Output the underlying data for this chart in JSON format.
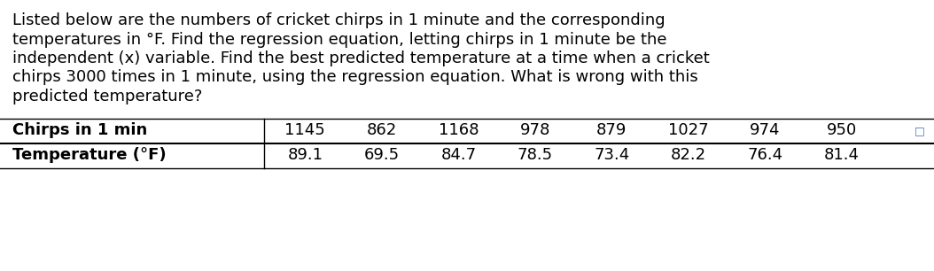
{
  "paragraph_lines": [
    "Listed below are the numbers of cricket chirps in 1 minute and the corresponding",
    "temperatures in °F. Find the regression equation, letting chirps in 1 minute be the",
    "independent (x) variable. Find the best predicted temperature at a time when a cricket",
    "chirps 3000 times in 1 minute, using the regression equation. What is wrong with this",
    "predicted temperature?"
  ],
  "row1_label": "Chirps in 1 min",
  "row2_label": "Temperature (°F)",
  "row1_values": [
    "1145",
    "862",
    "1168",
    "978",
    "879",
    "1027",
    "974",
    "950"
  ],
  "row2_values": [
    "89.1",
    "69.5",
    "84.7",
    "78.5",
    "73.4",
    "82.2",
    "76.4",
    "81.4"
  ],
  "bg_color": "#ffffff",
  "text_color": "#000000",
  "icon_color": "#4472C4",
  "font_size_paragraph": 13.0,
  "font_size_table": 13.0
}
